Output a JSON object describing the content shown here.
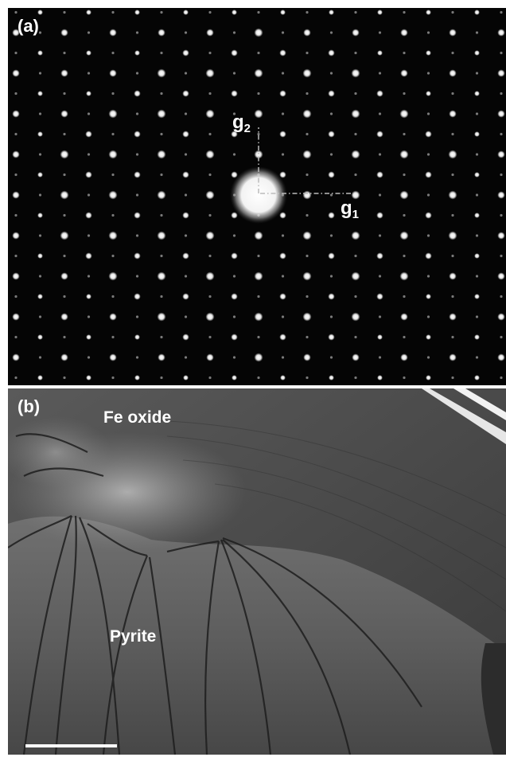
{
  "panel_a": {
    "label": "(a)",
    "vector_labels": {
      "g2": {
        "base": "g",
        "sub": "2"
      },
      "g1": {
        "base": "g",
        "sub": "1"
      }
    }
  },
  "panel_b": {
    "label": "(b)",
    "phase_labels": {
      "top": "Fe oxide",
      "bottom": "Pyrite"
    },
    "scale_bar": {
      "has_value_label": false
    }
  },
  "colors": {
    "background": "#ffffff",
    "diffraction_background": "#050505",
    "spot": "#ffffff",
    "text": "#ffffff"
  }
}
